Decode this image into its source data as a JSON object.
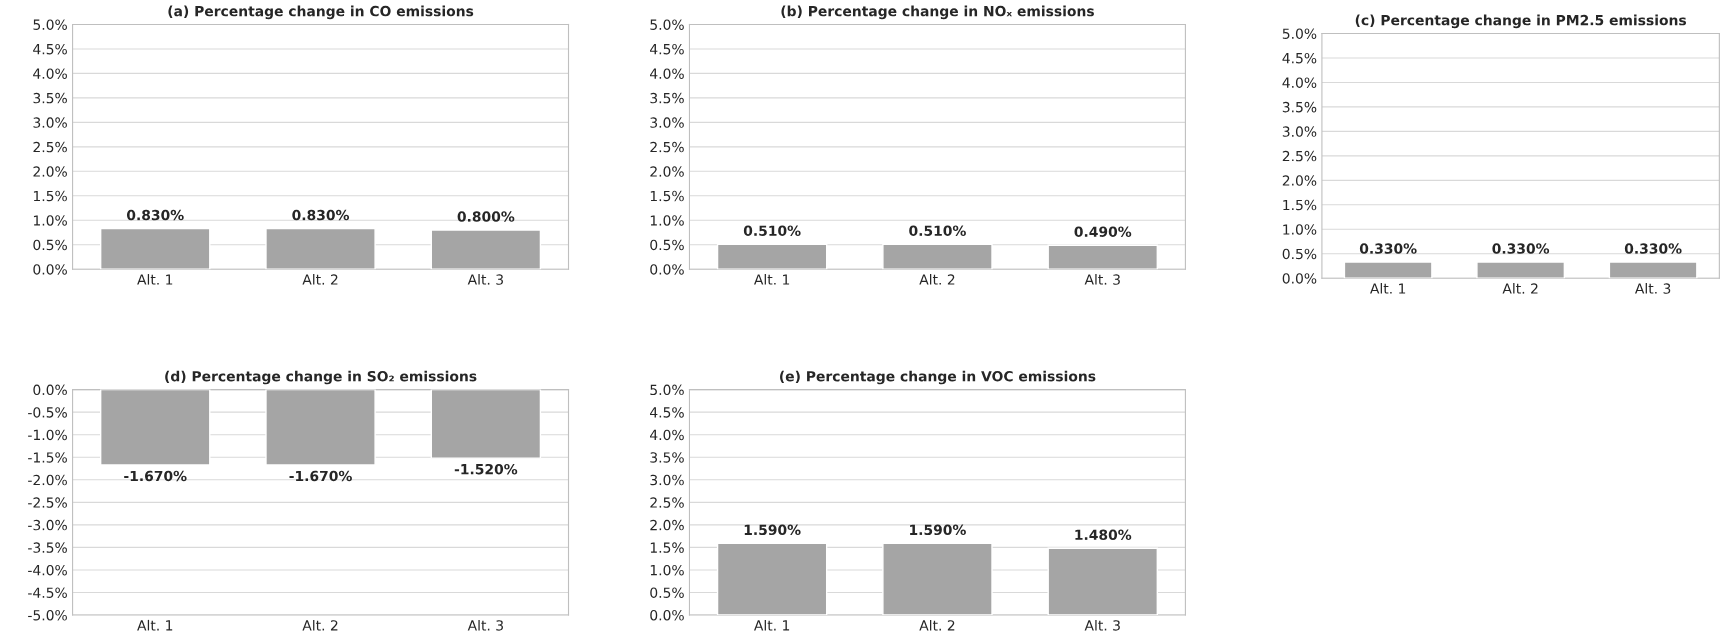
{
  "chart_data": [
    {
      "type": "bar",
      "title": "(a) Percentage change in CO emissions",
      "categories": [
        "Alt. 1",
        "Alt. 2",
        "Alt. 3"
      ],
      "values": [
        0.83,
        0.83,
        0.8
      ],
      "value_labels": [
        "0.830%",
        "0.830%",
        "0.800%"
      ],
      "color": "#a5a5a5",
      "ylim": [
        0,
        5
      ],
      "yticks": [
        {
          "value": 0,
          "label": "0.0%"
        },
        {
          "value": 0.5,
          "label": "0.5%"
        },
        {
          "value": 1,
          "label": "1.0%"
        },
        {
          "value": 1.5,
          "label": "1.5%"
        },
        {
          "value": 2,
          "label": "2.0%"
        },
        {
          "value": 2.5,
          "label": "2.5%"
        },
        {
          "value": 3,
          "label": "3.0%"
        },
        {
          "value": 3.5,
          "label": "3.5%"
        },
        {
          "value": 4,
          "label": "4.0%"
        },
        {
          "value": 4.5,
          "label": "4.5%"
        },
        {
          "value": 5,
          "label": "5.0%"
        }
      ],
      "grid": "y"
    },
    {
      "type": "bar",
      "title": "(b) Percentage change in NOₓ emissions",
      "categories": [
        "Alt. 1",
        "Alt. 2",
        "Alt. 3"
      ],
      "values": [
        0.51,
        0.51,
        0.49
      ],
      "value_labels": [
        "0.510%",
        "0.510%",
        "0.490%"
      ],
      "color": "#a5a5a5",
      "ylim": [
        0,
        5
      ],
      "yticks": [
        {
          "value": 0,
          "label": "0.0%"
        },
        {
          "value": 0.5,
          "label": "0.5%"
        },
        {
          "value": 1,
          "label": "1.0%"
        },
        {
          "value": 1.5,
          "label": "1.5%"
        },
        {
          "value": 2,
          "label": "2.0%"
        },
        {
          "value": 2.5,
          "label": "2.5%"
        },
        {
          "value": 3,
          "label": "3.0%"
        },
        {
          "value": 3.5,
          "label": "3.5%"
        },
        {
          "value": 4,
          "label": "4.0%"
        },
        {
          "value": 4.5,
          "label": "4.5%"
        },
        {
          "value": 5,
          "label": "5.0%"
        }
      ],
      "grid": "y"
    },
    {
      "type": "bar",
      "title": "(c) Percentage change in PM2.5 emissions",
      "categories": [
        "Alt. 1",
        "Alt. 2",
        "Alt. 3"
      ],
      "values": [
        0.33,
        0.33,
        0.33
      ],
      "value_labels": [
        "0.330%",
        "0.330%",
        "0.330%"
      ],
      "color": "#a5a5a5",
      "ylim": [
        0,
        5
      ],
      "yticks": [
        {
          "value": 0,
          "label": "0.0%"
        },
        {
          "value": 0.5,
          "label": "0.5%"
        },
        {
          "value": 1,
          "label": "1.0%"
        },
        {
          "value": 1.5,
          "label": "1.5%"
        },
        {
          "value": 2,
          "label": "2.0%"
        },
        {
          "value": 2.5,
          "label": "2.5%"
        },
        {
          "value": 3,
          "label": "3.0%"
        },
        {
          "value": 3.5,
          "label": "3.5%"
        },
        {
          "value": 4,
          "label": "4.0%"
        },
        {
          "value": 4.5,
          "label": "4.5%"
        },
        {
          "value": 5,
          "label": "5.0%"
        }
      ],
      "grid": "y"
    },
    {
      "type": "bar",
      "title": "(d) Percentage change in SO₂ emissions",
      "categories": [
        "Alt. 1",
        "Alt. 2",
        "Alt. 3"
      ],
      "values": [
        -1.67,
        -1.67,
        -1.52
      ],
      "value_labels": [
        "-1.670%",
        "-1.670%",
        "-1.520%"
      ],
      "color": "#a5a5a5",
      "ylim": [
        -5,
        0
      ],
      "yticks": [
        {
          "value": 0,
          "label": "0.0%"
        },
        {
          "value": -0.5,
          "label": "-0.5%"
        },
        {
          "value": -1,
          "label": "-1.0%"
        },
        {
          "value": -1.5,
          "label": "-1.5%"
        },
        {
          "value": -2,
          "label": "-2.0%"
        },
        {
          "value": -2.5,
          "label": "-2.5%"
        },
        {
          "value": -3,
          "label": "-3.0%"
        },
        {
          "value": -3.5,
          "label": "-3.5%"
        },
        {
          "value": -4,
          "label": "-4.0%"
        },
        {
          "value": -4.5,
          "label": "-4.5%"
        },
        {
          "value": -5,
          "label": "-5.0%"
        }
      ],
      "grid": "y"
    },
    {
      "type": "bar",
      "title": "(e) Percentage change in VOC emissions",
      "categories": [
        "Alt. 1",
        "Alt. 2",
        "Alt. 3"
      ],
      "values": [
        1.59,
        1.59,
        1.48
      ],
      "value_labels": [
        "1.590%",
        "1.590%",
        "1.480%"
      ],
      "color": "#a5a5a5",
      "ylim": [
        0,
        5
      ],
      "yticks": [
        {
          "value": 0,
          "label": "0.0%"
        },
        {
          "value": 0.5,
          "label": "0.5%"
        },
        {
          "value": 1,
          "label": "1.0%"
        },
        {
          "value": 1.5,
          "label": "1.5%"
        },
        {
          "value": 2,
          "label": "2.0%"
        },
        {
          "value": 2.5,
          "label": "2.5%"
        },
        {
          "value": 3,
          "label": "3.0%"
        },
        {
          "value": 3.5,
          "label": "3.5%"
        },
        {
          "value": 4,
          "label": "4.0%"
        },
        {
          "value": 4.5,
          "label": "4.5%"
        },
        {
          "value": 5,
          "label": "5.0%"
        }
      ],
      "grid": "y"
    }
  ]
}
